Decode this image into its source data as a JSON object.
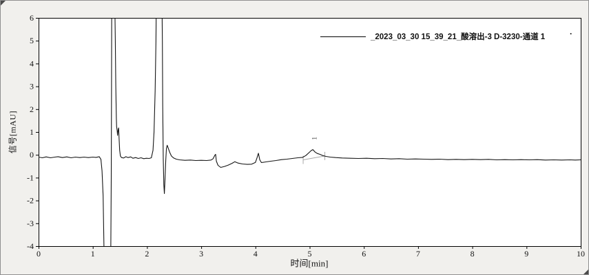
{
  "legend": {
    "label": "_2023_03_30 15_39_21_酸溶出-3 D-3230-通道 1",
    "suffix_dot": "."
  },
  "chart_data": {
    "type": "line",
    "title": "",
    "xlabel": "时间[min]",
    "ylabel": "信号[mAU]",
    "xlim": [
      0,
      10
    ],
    "ylim": [
      -4,
      6
    ],
    "x_ticks": [
      0,
      1,
      2,
      3,
      4,
      5,
      6,
      7,
      8,
      9,
      10
    ],
    "y_ticks": [
      -4,
      -3,
      -2,
      -1,
      0,
      1,
      2,
      3,
      4,
      5,
      6
    ],
    "grid": false,
    "legend_position": "top-right",
    "plot_bg": "#ffffff",
    "axis_color": "#000000",
    "series": [
      {
        "name": "_2023_03_30 15_39_21_酸溶出-3 D-3230-通道 1",
        "color": "#141414",
        "points": [
          [
            0.0,
            -0.1
          ],
          [
            0.07,
            -0.13
          ],
          [
            0.14,
            -0.09
          ],
          [
            0.22,
            -0.13
          ],
          [
            0.3,
            -0.1
          ],
          [
            0.36,
            -0.08
          ],
          [
            0.44,
            -0.12
          ],
          [
            0.52,
            -0.09
          ],
          [
            0.6,
            -0.13
          ],
          [
            0.68,
            -0.1
          ],
          [
            0.76,
            -0.12
          ],
          [
            0.84,
            -0.1
          ],
          [
            0.92,
            -0.12
          ],
          [
            1.0,
            -0.1
          ],
          [
            1.06,
            -0.11
          ],
          [
            1.12,
            -0.08
          ],
          [
            1.15,
            -0.2
          ],
          [
            1.17,
            -0.7
          ],
          [
            1.19,
            -1.8
          ],
          [
            1.21,
            -4.6
          ],
          [
            1.27,
            -5.0
          ],
          [
            1.33,
            -4.8
          ],
          [
            1.34,
            -1.0
          ],
          [
            1.345,
            3.0
          ],
          [
            1.35,
            6.8
          ],
          [
            1.405,
            6.8
          ],
          [
            1.415,
            5.0
          ],
          [
            1.425,
            3.0
          ],
          [
            1.435,
            1.6
          ],
          [
            1.44,
            1.23
          ],
          [
            1.45,
            1.05
          ],
          [
            1.458,
            0.85
          ],
          [
            1.468,
            1.1
          ],
          [
            1.476,
            1.18
          ],
          [
            1.485,
            0.7
          ],
          [
            1.495,
            0.2
          ],
          [
            1.51,
            -0.05
          ],
          [
            1.53,
            -0.12
          ],
          [
            1.57,
            -0.14
          ],
          [
            1.61,
            -0.08
          ],
          [
            1.65,
            -0.12
          ],
          [
            1.7,
            -0.09
          ],
          [
            1.74,
            -0.15
          ],
          [
            1.79,
            -0.12
          ],
          [
            1.84,
            -0.16
          ],
          [
            1.89,
            -0.13
          ],
          [
            1.94,
            -0.17
          ],
          [
            1.99,
            -0.15
          ],
          [
            2.04,
            -0.16
          ],
          [
            2.08,
            -0.13
          ],
          [
            2.11,
            0.2
          ],
          [
            2.13,
            1.0
          ],
          [
            2.15,
            2.8
          ],
          [
            2.165,
            5.0
          ],
          [
            2.172,
            6.8
          ],
          [
            2.276,
            6.8
          ],
          [
            2.283,
            5.0
          ],
          [
            2.29,
            2.2
          ],
          [
            2.3,
            -0.2
          ],
          [
            2.31,
            -1.3
          ],
          [
            2.32,
            -1.7
          ],
          [
            2.332,
            -1.1
          ],
          [
            2.345,
            -0.25
          ],
          [
            2.358,
            0.28
          ],
          [
            2.372,
            0.42
          ],
          [
            2.39,
            0.3
          ],
          [
            2.42,
            0.1
          ],
          [
            2.45,
            -0.05
          ],
          [
            2.49,
            -0.14
          ],
          [
            2.54,
            -0.19
          ],
          [
            2.6,
            -0.22
          ],
          [
            2.7,
            -0.24
          ],
          [
            2.8,
            -0.23
          ],
          [
            2.9,
            -0.25
          ],
          [
            3.0,
            -0.24
          ],
          [
            3.1,
            -0.25
          ],
          [
            3.18,
            -0.23
          ],
          [
            3.22,
            -0.17
          ],
          [
            3.25,
            -0.02
          ],
          [
            3.265,
            0.02
          ],
          [
            3.28,
            -0.28
          ],
          [
            3.31,
            -0.46
          ],
          [
            3.36,
            -0.55
          ],
          [
            3.43,
            -0.51
          ],
          [
            3.5,
            -0.45
          ],
          [
            3.57,
            -0.37
          ],
          [
            3.62,
            -0.3
          ],
          [
            3.68,
            -0.36
          ],
          [
            3.76,
            -0.4
          ],
          [
            3.85,
            -0.42
          ],
          [
            3.93,
            -0.41
          ],
          [
            4.0,
            -0.33
          ],
          [
            4.03,
            -0.12
          ],
          [
            4.055,
            0.07
          ],
          [
            4.08,
            -0.22
          ],
          [
            4.11,
            -0.34
          ],
          [
            4.19,
            -0.31
          ],
          [
            4.28,
            -0.28
          ],
          [
            4.38,
            -0.25
          ],
          [
            4.48,
            -0.21
          ],
          [
            4.58,
            -0.19
          ],
          [
            4.68,
            -0.16
          ],
          [
            4.78,
            -0.13
          ],
          [
            4.87,
            -0.11
          ],
          [
            4.93,
            -0.03
          ],
          [
            4.99,
            0.1
          ],
          [
            5.03,
            0.19
          ],
          [
            5.06,
            0.23
          ],
          [
            5.1,
            0.12
          ],
          [
            5.14,
            0.06
          ],
          [
            5.19,
            0.02
          ],
          [
            5.24,
            -0.03
          ],
          [
            5.3,
            -0.07
          ],
          [
            5.38,
            -0.1
          ],
          [
            5.48,
            -0.12
          ],
          [
            5.6,
            -0.14
          ],
          [
            5.75,
            -0.15
          ],
          [
            5.9,
            -0.16
          ],
          [
            6.05,
            -0.15
          ],
          [
            6.2,
            -0.17
          ],
          [
            6.35,
            -0.16
          ],
          [
            6.5,
            -0.18
          ],
          [
            6.65,
            -0.17
          ],
          [
            6.8,
            -0.19
          ],
          [
            6.95,
            -0.18
          ],
          [
            7.1,
            -0.19
          ],
          [
            7.25,
            -0.2
          ],
          [
            7.4,
            -0.19
          ],
          [
            7.55,
            -0.21
          ],
          [
            7.7,
            -0.2
          ],
          [
            7.85,
            -0.21
          ],
          [
            8.0,
            -0.2
          ],
          [
            8.15,
            -0.21
          ],
          [
            8.3,
            -0.2
          ],
          [
            8.45,
            -0.22
          ],
          [
            8.6,
            -0.21
          ],
          [
            8.75,
            -0.22
          ],
          [
            8.9,
            -0.21
          ],
          [
            9.05,
            -0.22
          ],
          [
            9.2,
            -0.21
          ],
          [
            9.35,
            -0.23
          ],
          [
            9.5,
            -0.22
          ],
          [
            9.65,
            -0.23
          ],
          [
            9.8,
            -0.22
          ],
          [
            9.9,
            -0.23
          ],
          [
            10.0,
            -0.22
          ]
        ]
      }
    ],
    "peaks": [
      {
        "label": "1",
        "x": 5.06,
        "y": 0.23,
        "label_x": 5.13,
        "label_y": 0.72
      }
    ],
    "integration": {
      "color": "#a8a8a8",
      "baseline": [
        [
          4.88,
          -0.22
        ],
        [
          5.28,
          -0.05
        ]
      ]
    },
    "annotations": {
      "offscale_peaks_x": [
        1.38,
        2.22
      ]
    }
  }
}
